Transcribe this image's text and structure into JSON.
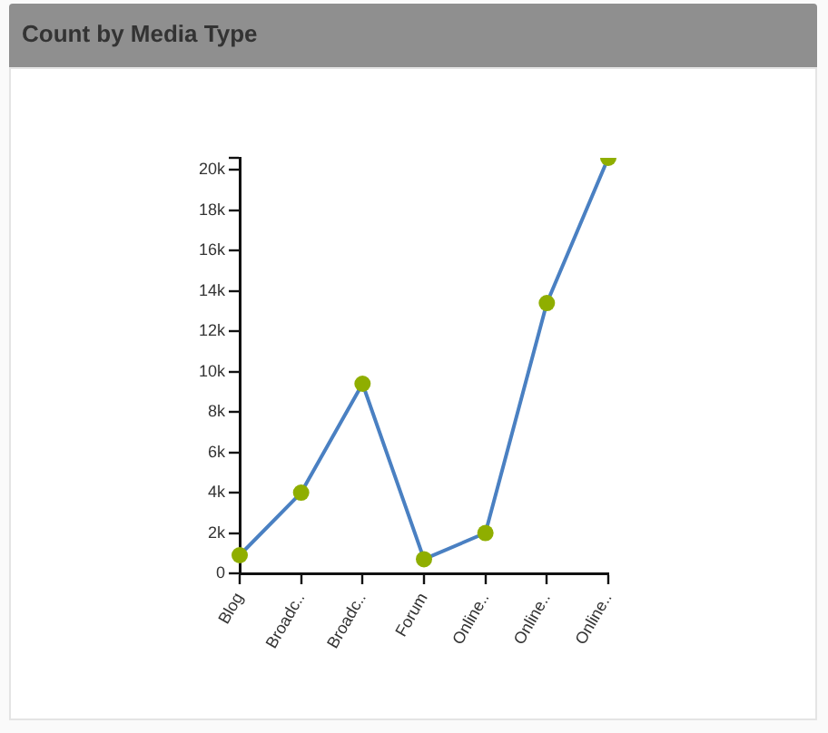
{
  "chart_data": {
    "type": "line",
    "title": "Count by Media Type",
    "categories": [
      "Blog",
      "Broadc..",
      "Broadc..",
      "Forum",
      "Online..",
      "Online..",
      "Online.."
    ],
    "series": [
      {
        "color": "#4a80c2",
        "colors": [
          "#8fae00",
          "#8fae00",
          "#8fae00",
          "#8fae00",
          "#8fae00",
          "#8fae00",
          "#8fae00"
        ],
        "values": [
          900,
          4000,
          9400,
          700,
          2000,
          13400,
          20600
        ]
      }
    ],
    "ylim": [
      0,
      20600
    ],
    "yticks": [
      {
        "value": 0,
        "label": "0"
      },
      {
        "value": 2000,
        "label": "2k"
      },
      {
        "value": 4000,
        "label": "4k"
      },
      {
        "value": 6000,
        "label": "6k"
      },
      {
        "value": 8000,
        "label": "8k"
      },
      {
        "value": 10000,
        "label": "10k"
      },
      {
        "value": 12000,
        "label": "12k"
      },
      {
        "value": 14000,
        "label": "14k"
      },
      {
        "value": 16000,
        "label": "16k"
      },
      {
        "value": 18000,
        "label": "18k"
      },
      {
        "value": 20000,
        "label": "20k"
      },
      {
        "value": 20600,
        "label": null
      }
    ],
    "grid": false,
    "legend": false,
    "marker": "circle",
    "line_style": "solid"
  }
}
